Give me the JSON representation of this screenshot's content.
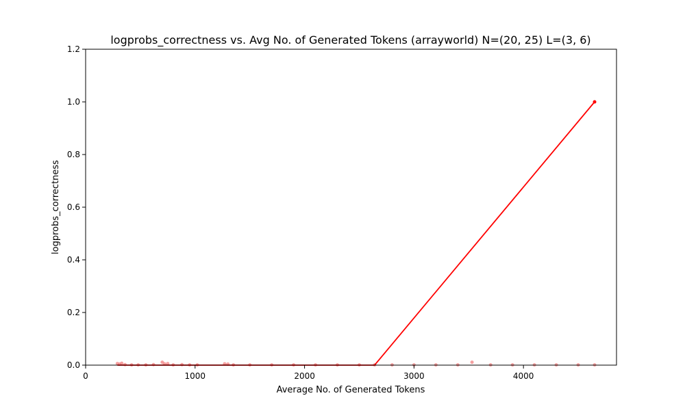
{
  "chart_data": {
    "type": "line",
    "title": "logprobs_correctness vs. Avg No. of Generated Tokens (arrayworld) N=(20, 25) L=(3, 6)",
    "xlabel": "Average No. of Generated Tokens",
    "ylabel": "logprobs_correctness",
    "xlim": [
      0,
      4850
    ],
    "ylim": [
      0,
      1.2
    ],
    "xticks": [
      0,
      1000,
      2000,
      3000,
      4000
    ],
    "xtick_labels": [
      "0",
      "1000",
      "2000",
      "3000",
      "4000"
    ],
    "yticks": [
      0.0,
      0.2,
      0.4,
      0.6,
      0.8,
      1.0,
      1.2
    ],
    "ytick_labels": [
      "0.0",
      "0.2",
      "0.4",
      "0.6",
      "0.8",
      "1.0",
      "1.2"
    ],
    "colors": {
      "trend": "#ff0000",
      "points": "#f08080"
    },
    "series": [
      {
        "name": "trend",
        "style": "line",
        "x": [
          290,
          2640,
          4650
        ],
        "y": [
          0,
          0,
          1.0
        ]
      },
      {
        "name": "endpoint",
        "style": "marker",
        "x": [
          4650
        ],
        "y": [
          1.0
        ]
      },
      {
        "name": "samples",
        "style": "scatter",
        "x": [
          290,
          310,
          330,
          360,
          420,
          480,
          550,
          620,
          700,
          720,
          750,
          800,
          880,
          950,
          1020,
          1270,
          1300,
          1350,
          1500,
          1700,
          1900,
          2100,
          2300,
          2500,
          2640,
          2800,
          3000,
          3200,
          3400,
          3530,
          3700,
          3900,
          4100,
          4300,
          4500,
          4650
        ],
        "y": [
          0.006,
          0.004,
          0.007,
          0.002,
          0.001,
          0.001,
          0.001,
          0.002,
          0.011,
          0.005,
          0.006,
          0.001,
          0.002,
          0.001,
          0.001,
          0.005,
          0.004,
          0.001,
          0.001,
          0.001,
          0.001,
          0.001,
          0.001,
          0.001,
          0.001,
          0.001,
          0.001,
          0.001,
          0.001,
          0.011,
          0.001,
          0.001,
          0.001,
          0.001,
          0.001,
          0.001
        ]
      }
    ]
  }
}
